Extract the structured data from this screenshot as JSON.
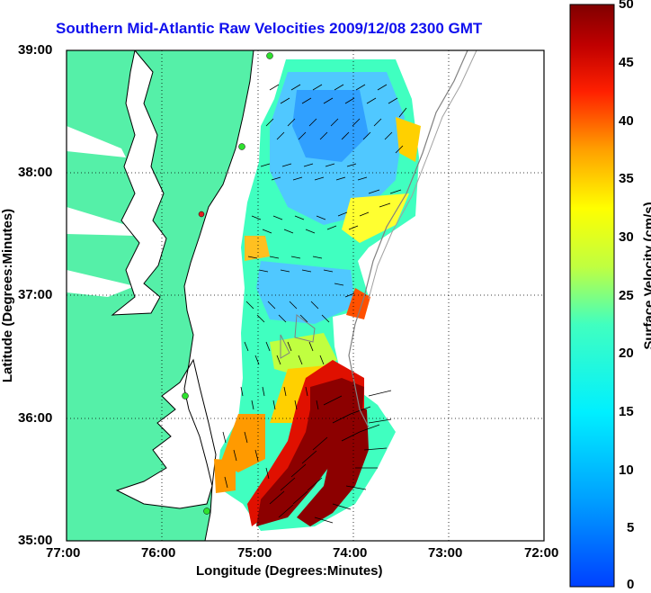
{
  "title": "Southern Mid-Atlantic Raw Velocities 2009/12/08 2300 GMT",
  "xaxis": {
    "label": "Longitude (Degrees:Minutes)",
    "ticks": [
      "77:00",
      "76:00",
      "75:00",
      "74:00",
      "73:00",
      "72:00"
    ]
  },
  "yaxis": {
    "label": "Latitude (Degrees:Minutes)",
    "ticks": [
      "39:00",
      "38:00",
      "37:00",
      "36:00",
      "35:00"
    ]
  },
  "colorbar": {
    "label": "Surface Velocity (cm/s)",
    "ticks": [
      "50",
      "45",
      "40",
      "35",
      "30",
      "25",
      "20",
      "15",
      "10",
      "5",
      "0"
    ]
  },
  "colors": {
    "land": "#55f0a8",
    "title": "#1010ee",
    "station": "#2ee02e",
    "station_alt": "#e02020"
  }
}
